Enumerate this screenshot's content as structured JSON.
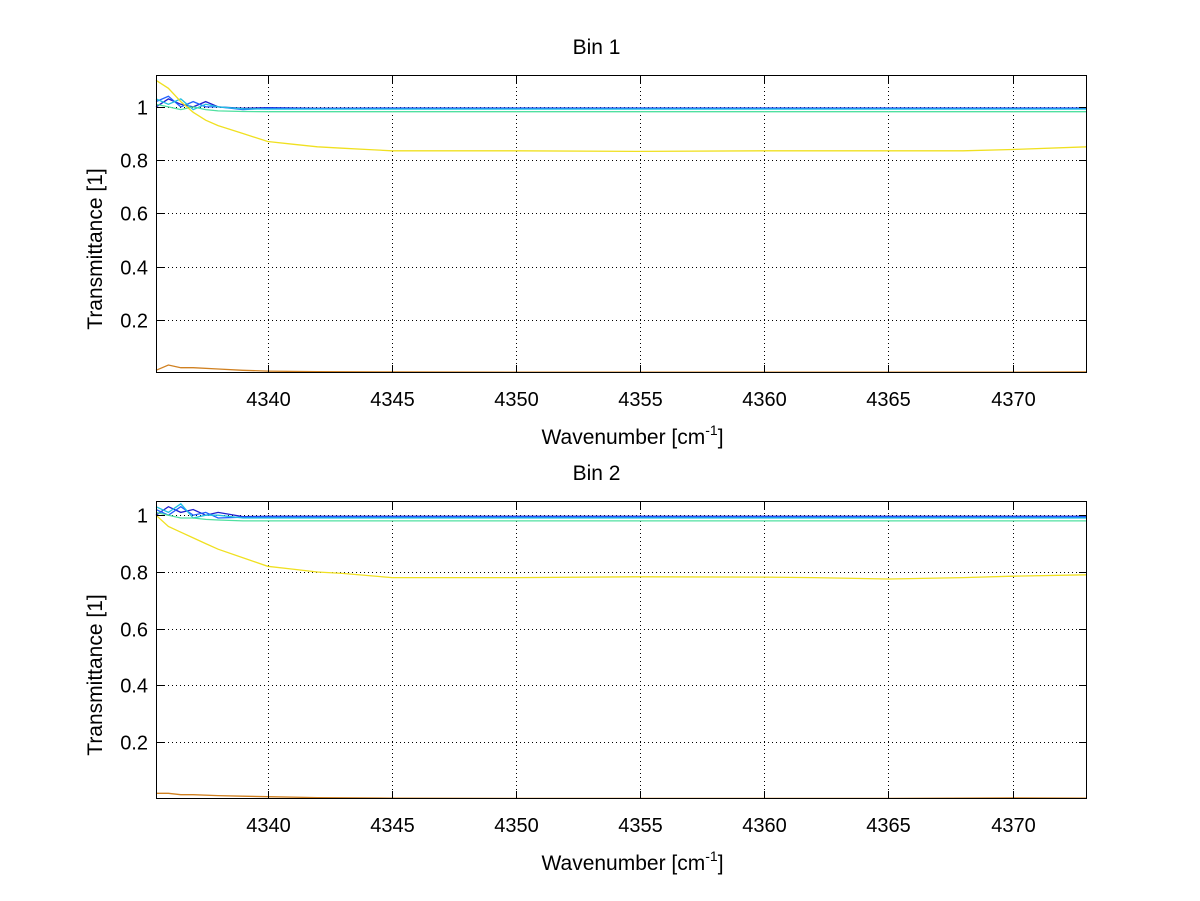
{
  "chart_data": [
    {
      "type": "line",
      "title": "Bin 1",
      "xlabel": "Wavenumber [cm",
      "xlabel_sup": "-1",
      "xlabel_close": "]",
      "ylabel": "Transmittance [1]",
      "xlim": [
        4335.5,
        4373
      ],
      "ylim": [
        0,
        1.12
      ],
      "grid": true,
      "xticks": [
        4340,
        4345,
        4350,
        4355,
        4360,
        4365,
        4370
      ],
      "xtick_labels": [
        "4340",
        "4345",
        "4350",
        "4355",
        "4360",
        "4365",
        "4370"
      ],
      "yticks": [
        0.2,
        0.4,
        0.6,
        0.8,
        1
      ],
      "ytick_labels": [
        "0.2",
        "0.4",
        "0.6",
        "0.8",
        "1"
      ],
      "series": [
        {
          "name": "dark-blue",
          "color": "#1f1fcf",
          "x": [
            4335.5,
            4336,
            4336.5,
            4337,
            4337.5,
            4338,
            4339,
            4340,
            4342,
            4345,
            4350,
            4355,
            4360,
            4365,
            4370,
            4373
          ],
          "y": [
            1.0,
            1.03,
            1.01,
            1.0,
            1.02,
            1.0,
            0.995,
            0.997,
            0.995,
            0.996,
            0.996,
            0.996,
            0.996,
            0.996,
            0.996,
            0.996
          ]
        },
        {
          "name": "blue",
          "color": "#2060ff",
          "x": [
            4335.5,
            4336,
            4336.5,
            4337,
            4337.5,
            4338,
            4339,
            4340,
            4342,
            4345,
            4350,
            4355,
            4360,
            4365,
            4370,
            4373
          ],
          "y": [
            1.02,
            1.04,
            1.0,
            1.02,
            1.0,
            1.0,
            0.99,
            0.995,
            0.994,
            0.995,
            0.995,
            0.995,
            0.995,
            0.995,
            0.995,
            0.995
          ]
        },
        {
          "name": "cyan",
          "color": "#20c0e0",
          "x": [
            4335.5,
            4336,
            4336.5,
            4337,
            4337.5,
            4338,
            4339,
            4340,
            4342,
            4345,
            4350,
            4355,
            4360,
            4365,
            4370,
            4373
          ],
          "y": [
            1.03,
            1.01,
            1.03,
            0.99,
            1.01,
            1.0,
            0.993,
            0.992,
            0.992,
            0.992,
            0.992,
            0.992,
            0.992,
            0.992,
            0.992,
            0.992
          ]
        },
        {
          "name": "green",
          "color": "#50e0a0",
          "x": [
            4335.5,
            4336,
            4336.5,
            4337,
            4337.5,
            4338,
            4339,
            4340,
            4342,
            4345,
            4350,
            4355,
            4360,
            4365,
            4370,
            4373
          ],
          "y": [
            1.01,
            1.0,
            0.99,
            1.0,
            0.99,
            0.985,
            0.983,
            0.982,
            0.982,
            0.982,
            0.982,
            0.982,
            0.982,
            0.982,
            0.982,
            0.982
          ]
        },
        {
          "name": "yellow",
          "color": "#f0e020",
          "x": [
            4335.5,
            4336,
            4336.5,
            4337,
            4337.5,
            4338,
            4339,
            4340,
            4341,
            4342,
            4343,
            4344,
            4345,
            4350,
            4355,
            4360,
            4365,
            4368,
            4370,
            4373
          ],
          "y": [
            1.1,
            1.07,
            1.02,
            0.98,
            0.95,
            0.93,
            0.9,
            0.87,
            0.86,
            0.85,
            0.845,
            0.84,
            0.835,
            0.835,
            0.833,
            0.835,
            0.835,
            0.835,
            0.84,
            0.85
          ]
        },
        {
          "name": "orange",
          "color": "#d08020",
          "x": [
            4335.5,
            4336,
            4336.5,
            4337,
            4338,
            4339,
            4340,
            4342,
            4345,
            4350,
            4355,
            4360,
            4365,
            4370,
            4373
          ],
          "y": [
            0.01,
            0.03,
            0.02,
            0.02,
            0.015,
            0.01,
            0.007,
            0.005,
            0.004,
            0.003,
            0.003,
            0.003,
            0.003,
            0.003,
            0.004
          ]
        }
      ]
    },
    {
      "type": "line",
      "title": "Bin 2",
      "xlabel": "Wavenumber [cm",
      "xlabel_sup": "-1",
      "xlabel_close": "]",
      "ylabel": "Transmittance [1]",
      "xlim": [
        4335.5,
        4373
      ],
      "ylim": [
        0,
        1.05
      ],
      "grid": true,
      "xticks": [
        4340,
        4345,
        4350,
        4355,
        4360,
        4365,
        4370
      ],
      "xtick_labels": [
        "4340",
        "4345",
        "4350",
        "4355",
        "4360",
        "4365",
        "4370"
      ],
      "yticks": [
        0.2,
        0.4,
        0.6,
        0.8,
        1
      ],
      "ytick_labels": [
        "0.2",
        "0.4",
        "0.6",
        "0.8",
        "1"
      ],
      "series": [
        {
          "name": "dark-blue",
          "color": "#1f1fcf",
          "x": [
            4335.5,
            4336,
            4336.5,
            4337,
            4337.5,
            4338,
            4339,
            4340,
            4342,
            4345,
            4350,
            4355,
            4360,
            4365,
            4370,
            4373
          ],
          "y": [
            1.0,
            1.03,
            1.01,
            1.02,
            1.0,
            1.01,
            0.995,
            0.996,
            0.996,
            0.996,
            0.996,
            0.996,
            0.996,
            0.996,
            0.996,
            0.996
          ]
        },
        {
          "name": "blue",
          "color": "#2060ff",
          "x": [
            4335.5,
            4336,
            4336.5,
            4337,
            4337.5,
            4338,
            4339,
            4340,
            4342,
            4345,
            4350,
            4355,
            4360,
            4365,
            4370,
            4373
          ],
          "y": [
            1.02,
            1.0,
            1.03,
            1.0,
            1.01,
            0.99,
            0.993,
            0.994,
            0.994,
            0.994,
            0.994,
            0.994,
            0.994,
            0.994,
            0.994,
            0.994
          ]
        },
        {
          "name": "cyan",
          "color": "#20c0e0",
          "x": [
            4335.5,
            4336,
            4336.5,
            4337,
            4337.5,
            4338,
            4339,
            4340,
            4342,
            4345,
            4350,
            4355,
            4360,
            4365,
            4370,
            4373
          ],
          "y": [
            1.03,
            1.01,
            1.04,
            0.99,
            1.0,
            1.0,
            0.99,
            0.99,
            0.99,
            0.99,
            0.99,
            0.99,
            0.99,
            0.99,
            0.99,
            0.99
          ]
        },
        {
          "name": "green",
          "color": "#50e0a0",
          "x": [
            4335.5,
            4336,
            4336.5,
            4337,
            4337.5,
            4338,
            4339,
            4340,
            4342,
            4345,
            4350,
            4355,
            4360,
            4365,
            4370,
            4373
          ],
          "y": [
            1.01,
            1.0,
            0.99,
            0.99,
            0.985,
            0.983,
            0.98,
            0.98,
            0.98,
            0.98,
            0.98,
            0.98,
            0.98,
            0.98,
            0.98,
            0.98
          ]
        },
        {
          "name": "yellow",
          "color": "#f0e020",
          "x": [
            4335.5,
            4336,
            4336.5,
            4337,
            4337.5,
            4338,
            4339,
            4340,
            4341,
            4342,
            4343,
            4345,
            4350,
            4355,
            4360,
            4362,
            4365,
            4368,
            4370,
            4373
          ],
          "y": [
            1.0,
            0.96,
            0.94,
            0.92,
            0.9,
            0.88,
            0.85,
            0.82,
            0.81,
            0.8,
            0.795,
            0.78,
            0.78,
            0.783,
            0.782,
            0.78,
            0.775,
            0.78,
            0.785,
            0.79
          ]
        },
        {
          "name": "orange",
          "color": "#d08020",
          "x": [
            4335.5,
            4336,
            4336.5,
            4337,
            4338,
            4339,
            4340,
            4342,
            4345,
            4350,
            4355,
            4360,
            4365,
            4370,
            4373
          ],
          "y": [
            0.02,
            0.02,
            0.015,
            0.015,
            0.012,
            0.01,
            0.008,
            0.005,
            0.003,
            0.002,
            0.002,
            0.002,
            0.002,
            0.004,
            0.003
          ]
        }
      ]
    }
  ]
}
